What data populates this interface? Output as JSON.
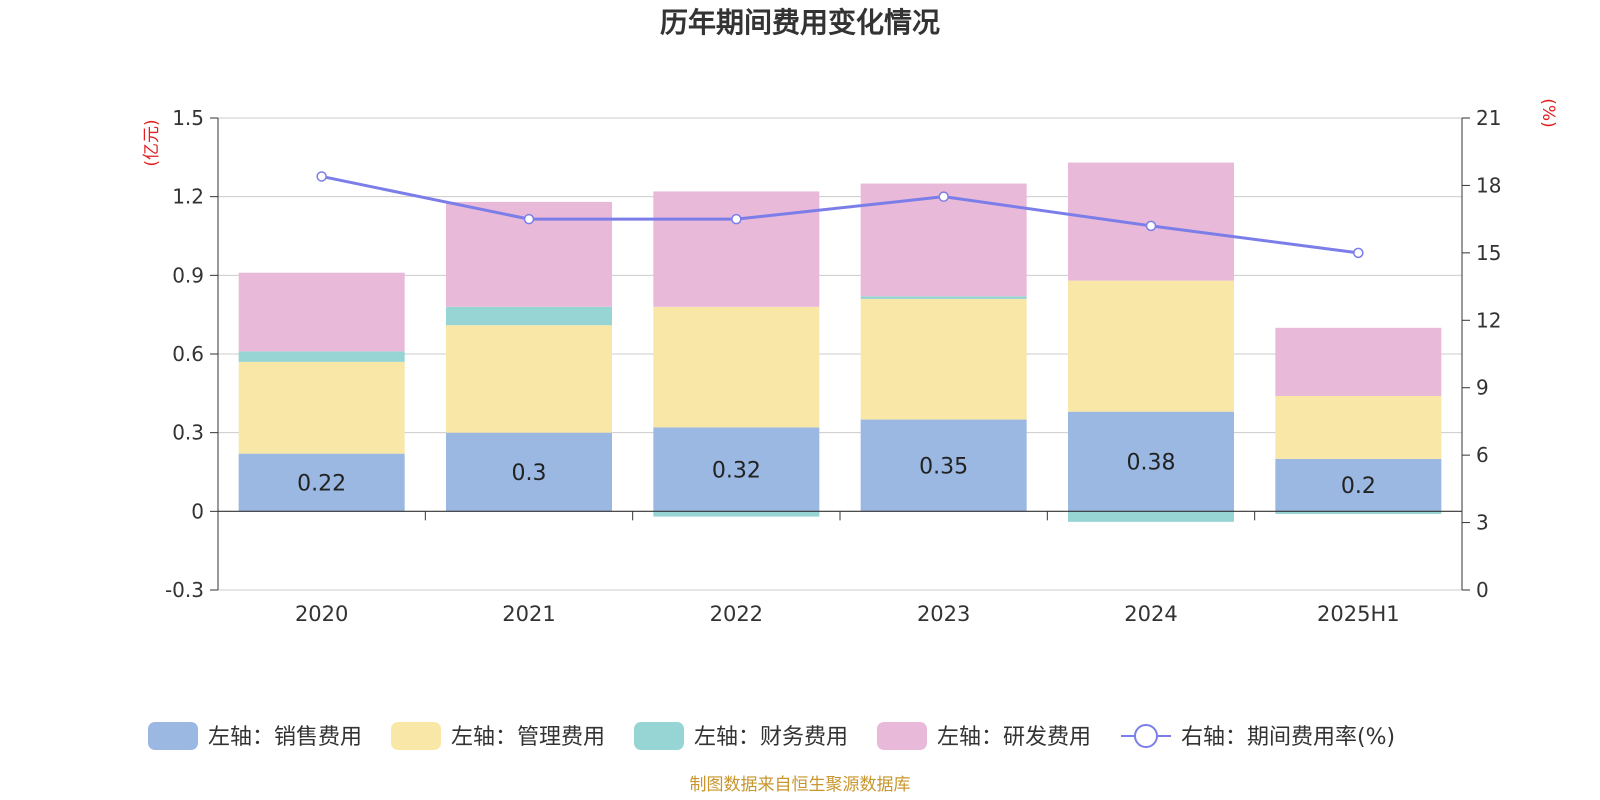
{
  "chart_data": {
    "type": "bar",
    "title": "历年期间费用变化情况",
    "categories": [
      "2020",
      "2021",
      "2022",
      "2023",
      "2024",
      "2025H1"
    ],
    "left_axis": {
      "unit": "(亿元)",
      "ylim": [
        -0.3,
        1.5
      ],
      "ticks": [
        -0.3,
        0,
        0.3,
        0.6,
        0.9,
        1.2,
        1.5
      ]
    },
    "right_axis": {
      "unit": "(%)",
      "ylim": [
        0,
        21
      ],
      "ticks": [
        0,
        3,
        6,
        9,
        12,
        15,
        18,
        21
      ]
    },
    "series": [
      {
        "name": "左轴：销售费用",
        "type": "bar",
        "color": "#9bb8e2",
        "values": [
          0.22,
          0.3,
          0.32,
          0.35,
          0.38,
          0.2
        ],
        "labels": [
          "0.22",
          "0.3",
          "0.32",
          "0.35",
          "0.38",
          "0.2"
        ]
      },
      {
        "name": "左轴：管理费用",
        "type": "bar",
        "color": "#f8e7a6",
        "values": [
          0.35,
          0.41,
          0.46,
          0.46,
          0.5,
          0.24
        ]
      },
      {
        "name": "左轴：财务费用",
        "type": "bar",
        "color": "#97d4d4",
        "values": [
          0.04,
          0.07,
          -0.02,
          0.01,
          -0.04,
          -0.01
        ]
      },
      {
        "name": "左轴：研发费用",
        "type": "bar",
        "color": "#e8b9d9",
        "values": [
          0.3,
          0.4,
          0.44,
          0.43,
          0.45,
          0.26
        ]
      },
      {
        "name": "右轴：期间费用率(%)",
        "type": "line",
        "color": "#7b7ee8",
        "values": [
          18.4,
          16.5,
          16.5,
          17.5,
          16.2,
          15.0
        ]
      }
    ],
    "grid": true,
    "legend": "bottom"
  },
  "source": "制图数据来自恒生聚源数据库",
  "colors": {
    "unit": "#e02020",
    "source": "#c8962c",
    "gridline": "#cccccc",
    "axis": "#333333"
  }
}
